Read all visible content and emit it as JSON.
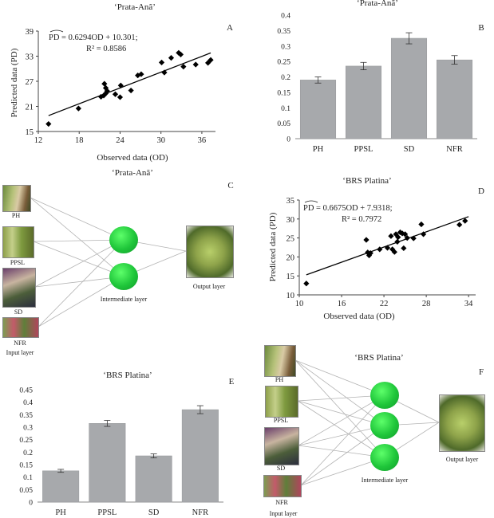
{
  "chart_data": [
    {
      "id": "A",
      "type": "scatter",
      "title": "‘Prata-Anã’",
      "xlabel": "Observed data (OD)",
      "ylabel": "Predicted data (PD)",
      "xlim": [
        12,
        38
      ],
      "ylim": [
        15,
        39
      ],
      "xticks": [
        "12",
        "18",
        "24",
        "30",
        "36"
      ],
      "yticks": [
        "15",
        "21",
        "27",
        "33",
        "39"
      ],
      "equation_text": "PD = 0.6294OD + 10.301;",
      "r2_text": "R² = 0.8586",
      "slope": 0.6294,
      "intercept": 10.301,
      "fit_x": [
        13.5,
        37.3
      ],
      "points": [
        [
          13.5,
          16.8
        ],
        [
          17.9,
          20.5
        ],
        [
          21.2,
          23.3
        ],
        [
          21.6,
          23.6
        ],
        [
          21.9,
          24.1
        ],
        [
          21.7,
          26.4
        ],
        [
          21.9,
          25.4
        ],
        [
          22.1,
          24.7
        ],
        [
          23.3,
          23.9
        ],
        [
          24.1,
          26.0
        ],
        [
          24.0,
          23.2
        ],
        [
          25.6,
          24.8
        ],
        [
          26.6,
          28.4
        ],
        [
          27.1,
          28.7
        ],
        [
          30.1,
          31.5
        ],
        [
          30.5,
          29.1
        ],
        [
          31.5,
          32.6
        ],
        [
          32.6,
          33.8
        ],
        [
          32.9,
          33.4
        ],
        [
          33.3,
          30.5
        ],
        [
          35.1,
          31.0
        ],
        [
          36.9,
          31.4
        ],
        [
          37.3,
          32.1
        ]
      ]
    },
    {
      "id": "B",
      "type": "bar",
      "title": "‘Prata-Anã’",
      "categories": [
        "PH",
        "PPSL",
        "SD",
        "NFR"
      ],
      "values": [
        0.19,
        0.235,
        0.325,
        0.255
      ],
      "errors": [
        0.01,
        0.012,
        0.018,
        0.014
      ],
      "ylim": [
        0,
        0.4
      ],
      "yticks": [
        "0",
        "0.05",
        "0.1",
        "0.15",
        "0.2",
        "0.25",
        "0.3",
        "0.35",
        "0.4"
      ]
    },
    {
      "id": "D",
      "type": "scatter",
      "title": "‘BRS Platina’",
      "xlabel": "Observed data (OD)",
      "ylabel": "Predicted data (PD)",
      "xlim": [
        10,
        35
      ],
      "ylim": [
        10,
        35
      ],
      "xticks": [
        "10",
        "16",
        "22",
        "28",
        "34"
      ],
      "yticks": [
        "10",
        "15",
        "20",
        "25",
        "30",
        "35"
      ],
      "equation_text": "PD = 0.6675OD + 7.9318;",
      "r2_text": "R² = 0.7972",
      "slope": 0.6675,
      "intercept": 7.9318,
      "fit_x": [
        11,
        34
      ],
      "points": [
        [
          11,
          13
        ],
        [
          19.5,
          24.5
        ],
        [
          19.7,
          21.2
        ],
        [
          19.9,
          20.4
        ],
        [
          20.1,
          21.0
        ],
        [
          21.4,
          22.0
        ],
        [
          22.5,
          22.4
        ],
        [
          23.0,
          25.5
        ],
        [
          23.2,
          22.0
        ],
        [
          23.5,
          21.3
        ],
        [
          23.7,
          26.0
        ],
        [
          23.9,
          24.0
        ],
        [
          24.0,
          25.2
        ],
        [
          24.3,
          26.5
        ],
        [
          24.6,
          26.2
        ],
        [
          24.8,
          22.3
        ],
        [
          25.0,
          26.0
        ],
        [
          25.3,
          25.0
        ],
        [
          26.2,
          24.9
        ],
        [
          27.3,
          28.6
        ],
        [
          27.6,
          26.0
        ],
        [
          32.7,
          28.5
        ],
        [
          33.5,
          29.5
        ]
      ]
    },
    {
      "id": "E",
      "type": "bar",
      "title": "‘BRS Platina’",
      "categories": [
        "PH",
        "PPSL",
        "SD",
        "NFR"
      ],
      "values": [
        0.125,
        0.315,
        0.185,
        0.37
      ],
      "errors": [
        0.006,
        0.012,
        0.008,
        0.016
      ],
      "ylim": [
        0,
        0.45
      ],
      "yticks": [
        "0",
        "0.05",
        "0.1",
        "0.15",
        "0.2",
        "0.25",
        "0.3",
        "0.35",
        "0.4",
        "0.45"
      ]
    }
  ],
  "diagrams": {
    "C": {
      "letter": "C",
      "title": "‘Prata-Anã’",
      "inputs": [
        "PH",
        "PPSL",
        "SD",
        "NFR"
      ],
      "input_layer": "Input layer",
      "intermediate_layer": "Intermediate layer",
      "output_layer": "Output layer"
    },
    "F": {
      "letter": "F",
      "title": "‘BRS Platina’",
      "inputs": [
        "PH",
        "PPSL",
        "SD",
        "NFR"
      ],
      "input_layer": "Input layer",
      "intermediate_layer": "Intermediate layer",
      "output_layer": "Output layer"
    }
  },
  "colors": {
    "bar": "#a7a9ac",
    "marker": "#000000",
    "neuron": "#1fc63a",
    "connection": "#b3b3b3"
  }
}
